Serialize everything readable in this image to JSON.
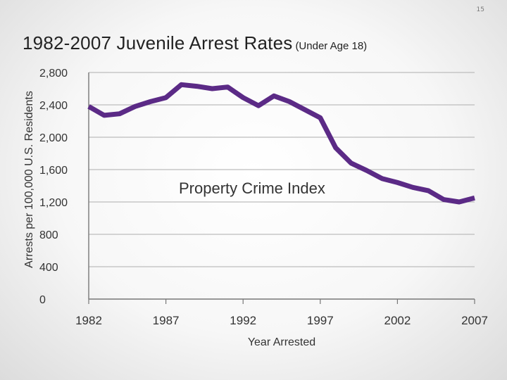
{
  "slide": {
    "number": "15"
  },
  "chart_data": {
    "type": "line",
    "title": "1982-2007 Juvenile Arrest Rates",
    "subtitle": "(Under Age 18)",
    "xlabel": "Year Arrested",
    "ylabel": "Arrests per 100,000 U.S. Residents",
    "annotation": "Property Crime Index",
    "xlim": [
      1982,
      2007
    ],
    "ylim": [
      0,
      2800
    ],
    "x_ticks": [
      1982,
      1987,
      1992,
      1997,
      2002,
      2007
    ],
    "x_tick_labels": [
      "1982",
      "1987",
      "1992",
      "1997",
      "2002",
      "2007"
    ],
    "y_ticks": [
      0,
      400,
      800,
      1200,
      1600,
      2000,
      2400,
      2800
    ],
    "y_tick_labels": [
      "0",
      "400",
      "800",
      "1,200",
      "1,600",
      "2,000",
      "2,400",
      "2,800"
    ],
    "grid": true,
    "line_color": "#5b2a86",
    "series": [
      {
        "x": [
          1982,
          1983,
          1984,
          1985,
          1986,
          1987,
          1988,
          1989,
          1990,
          1991,
          1992,
          1993,
          1994,
          1995,
          1996,
          1997,
          1998,
          1999,
          2000,
          2001,
          2002,
          2003,
          2004,
          2005,
          2006,
          2007
        ],
        "values": [
          2380,
          2270,
          2290,
          2380,
          2440,
          2490,
          2650,
          2630,
          2600,
          2620,
          2490,
          2390,
          2510,
          2440,
          2340,
          2240,
          1870,
          1680,
          1590,
          1490,
          1440,
          1380,
          1340,
          1230,
          1200,
          1250
        ]
      }
    ]
  }
}
